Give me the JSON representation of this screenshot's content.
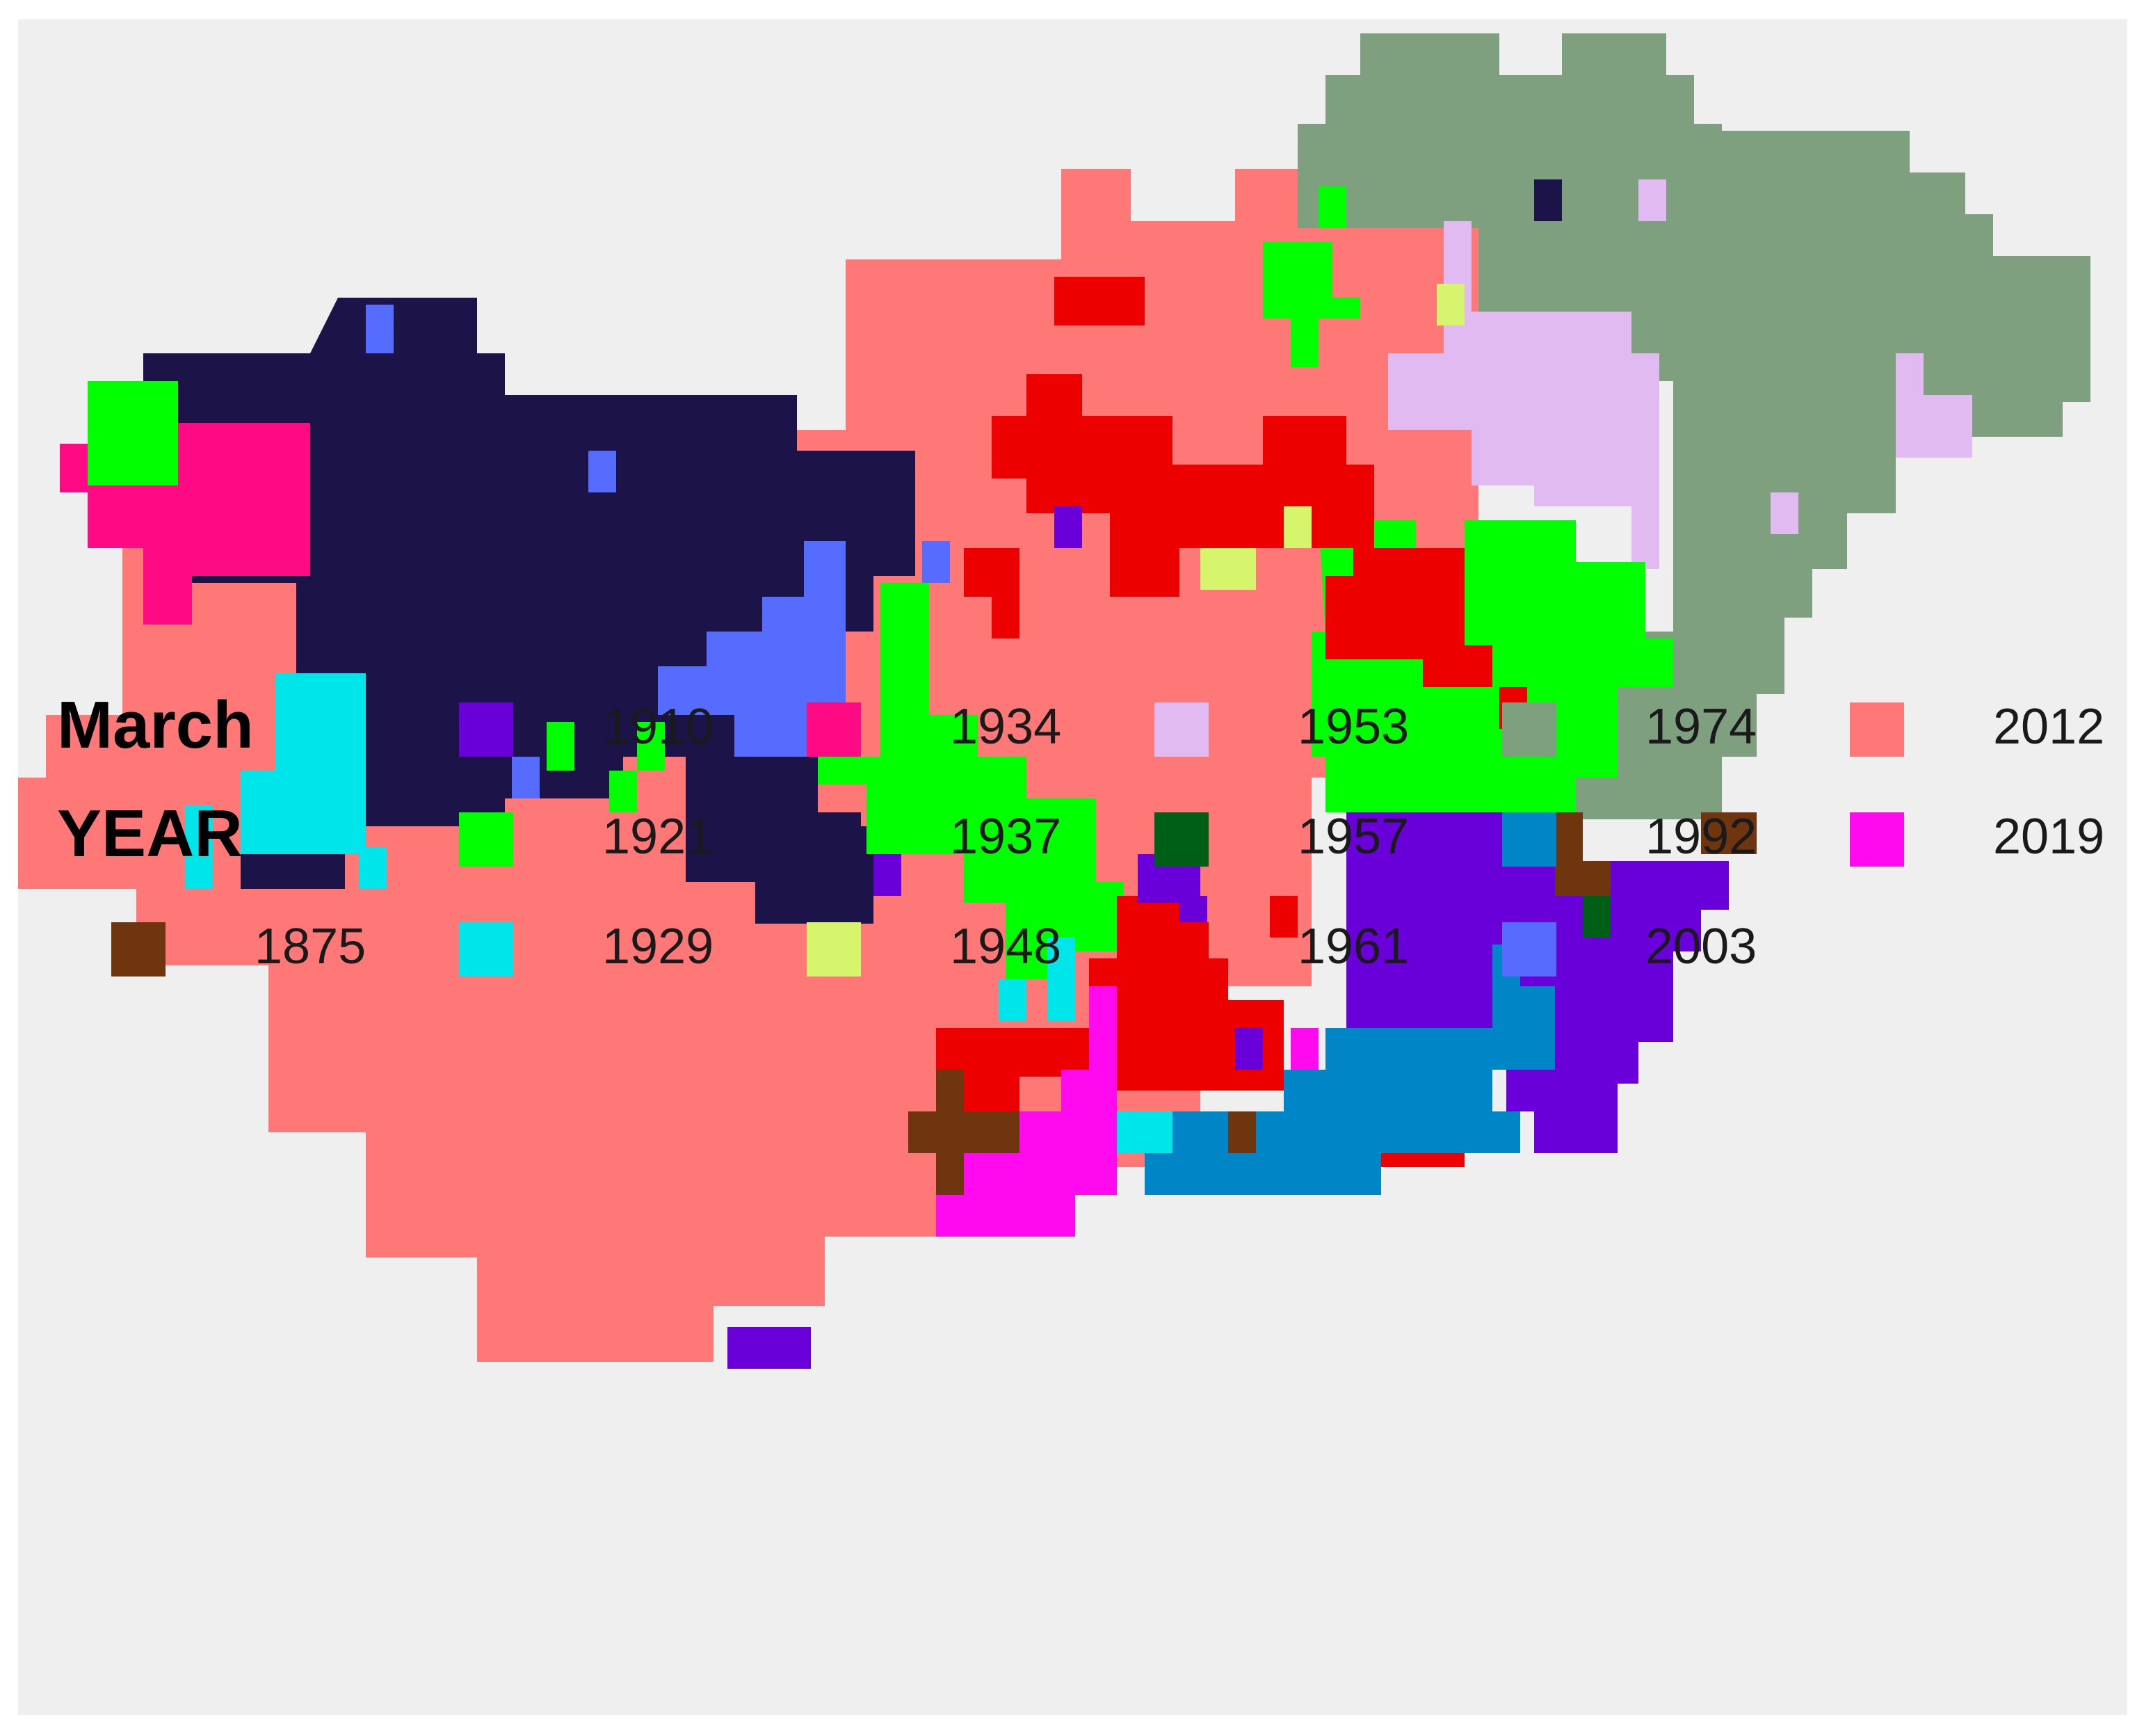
{
  "legend": {
    "title_line1": "March",
    "title_line2": "YEAR",
    "entries": [
      {
        "year": "1875",
        "color": "#6f350f"
      },
      {
        "year": "1910",
        "color": "#6a00d9"
      },
      {
        "year": "1921",
        "color": "#00ff00"
      },
      {
        "year": "1929",
        "color": "#00e5ea"
      },
      {
        "year": "1934",
        "color": "#ff0a85"
      },
      {
        "year": "1937",
        "color": "#1c1449"
      },
      {
        "year": "1948",
        "color": "#d6f56d"
      },
      {
        "year": "1953",
        "color": "#e2baf2"
      },
      {
        "year": "1957",
        "color": "#005f16"
      },
      {
        "year": "1961",
        "color": "#ec0000"
      },
      {
        "year": "1974",
        "color": "#7ea07f"
      },
      {
        "year": "1992",
        "color": "#0086c6"
      },
      {
        "year": "2003",
        "color": "#566bff"
      },
      {
        "year": "2012",
        "color": "#ff7878"
      },
      {
        "year": "2019",
        "color": "#ff0aee"
      }
    ]
  }
}
